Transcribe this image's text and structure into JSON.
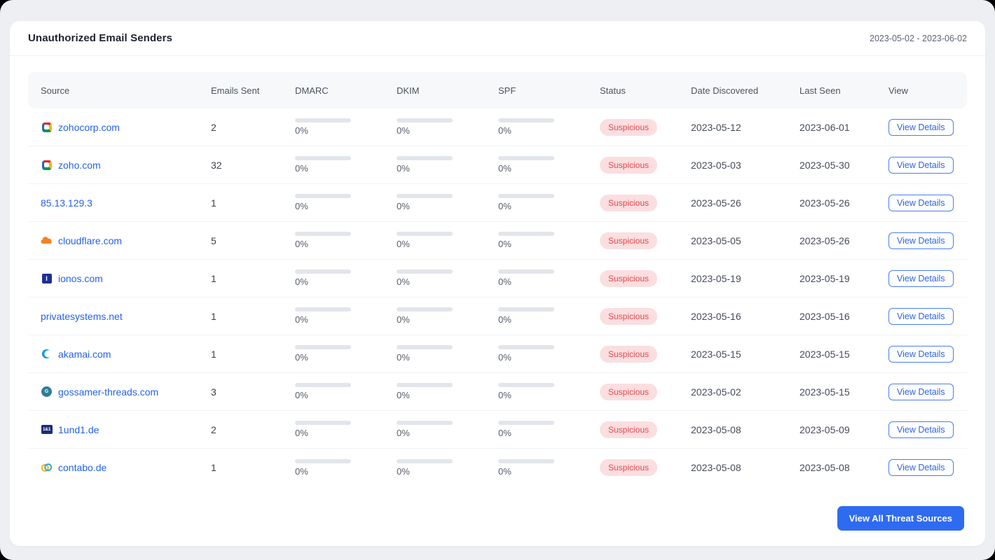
{
  "panel": {
    "title": "Unauthorized Email Senders",
    "date_range": "2023-05-02 - 2023-06-02",
    "view_all_label": "View All Threat Sources"
  },
  "table": {
    "columns": [
      "Source",
      "Emails Sent",
      "DMARC",
      "DKIM",
      "SPF",
      "Status",
      "Date Discovered",
      "Last Seen",
      "View"
    ],
    "view_details_label": "View Details",
    "rows": [
      {
        "source": "zohocorp.com",
        "icon": "zoho",
        "emails_sent": "2",
        "dmarc": "0%",
        "dkim": "0%",
        "spf": "0%",
        "status": "Suspicious",
        "date_discovered": "2023-05-12",
        "last_seen": "2023-06-01"
      },
      {
        "source": "zoho.com",
        "icon": "zoho",
        "emails_sent": "32",
        "dmarc": "0%",
        "dkim": "0%",
        "spf": "0%",
        "status": "Suspicious",
        "date_discovered": "2023-05-03",
        "last_seen": "2023-05-30"
      },
      {
        "source": "85.13.129.3",
        "icon": null,
        "emails_sent": "1",
        "dmarc": "0%",
        "dkim": "0%",
        "spf": "0%",
        "status": "Suspicious",
        "date_discovered": "2023-05-26",
        "last_seen": "2023-05-26"
      },
      {
        "source": "cloudflare.com",
        "icon": "cloudflare",
        "emails_sent": "5",
        "dmarc": "0%",
        "dkim": "0%",
        "spf": "0%",
        "status": "Suspicious",
        "date_discovered": "2023-05-05",
        "last_seen": "2023-05-26"
      },
      {
        "source": "ionos.com",
        "icon": "ionos",
        "emails_sent": "1",
        "dmarc": "0%",
        "dkim": "0%",
        "spf": "0%",
        "status": "Suspicious",
        "date_discovered": "2023-05-19",
        "last_seen": "2023-05-19"
      },
      {
        "source": "privatesystems.net",
        "icon": null,
        "emails_sent": "1",
        "dmarc": "0%",
        "dkim": "0%",
        "spf": "0%",
        "status": "Suspicious",
        "date_discovered": "2023-05-16",
        "last_seen": "2023-05-16"
      },
      {
        "source": "akamai.com",
        "icon": "akamai",
        "emails_sent": "1",
        "dmarc": "0%",
        "dkim": "0%",
        "spf": "0%",
        "status": "Suspicious",
        "date_discovered": "2023-05-15",
        "last_seen": "2023-05-15"
      },
      {
        "source": "gossamer-threads.com",
        "icon": "gossamer",
        "emails_sent": "3",
        "dmarc": "0%",
        "dkim": "0%",
        "spf": "0%",
        "status": "Suspicious",
        "date_discovered": "2023-05-02",
        "last_seen": "2023-05-15"
      },
      {
        "source": "1und1.de",
        "icon": "und1",
        "emails_sent": "2",
        "dmarc": "0%",
        "dkim": "0%",
        "spf": "0%",
        "status": "Suspicious",
        "date_discovered": "2023-05-08",
        "last_seen": "2023-05-09"
      },
      {
        "source": "contabo.de",
        "icon": "contabo",
        "emails_sent": "1",
        "dmarc": "0%",
        "dkim": "0%",
        "spf": "0%",
        "status": "Suspicious",
        "date_discovered": "2023-05-08",
        "last_seen": "2023-05-08"
      }
    ]
  },
  "colors": {
    "accent": "#2f6bf0",
    "link": "#2462ea",
    "status_bg": "#fbdee0",
    "status_text": "#e5484d",
    "bar_track": "#e2e5ea"
  }
}
